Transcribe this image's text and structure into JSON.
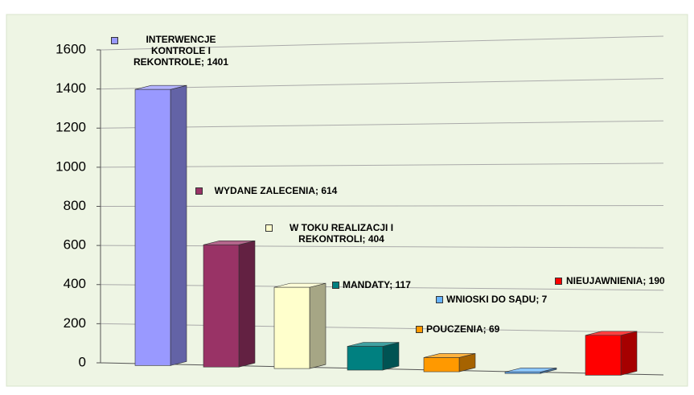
{
  "chart_data": {
    "type": "bar3d",
    "values": [
      1401,
      614,
      404,
      117,
      69,
      7,
      190
    ],
    "value_labels": [
      "INTERWENCJE KONTROLE I REKONTROLE; 1401",
      "WYDANE ZALECENIA; 614",
      "W TOKU REALIZACJI I REKONTROLI; 404",
      "MANDATY; 117",
      "POUCZENIA; 69",
      "WNIOSKI DO SĄDU; 7",
      "NIEUJAWNIENIA; 190"
    ],
    "colors": [
      "#9999ff",
      "#993366",
      "#ffffcc",
      "#008080",
      "#ff9900",
      "#66b3ff",
      "#ff0000"
    ],
    "ylim": [
      0,
      1600
    ],
    "yticks": [
      0,
      200,
      400,
      600,
      800,
      1000,
      1200,
      1400,
      1600
    ],
    "grid": true
  }
}
